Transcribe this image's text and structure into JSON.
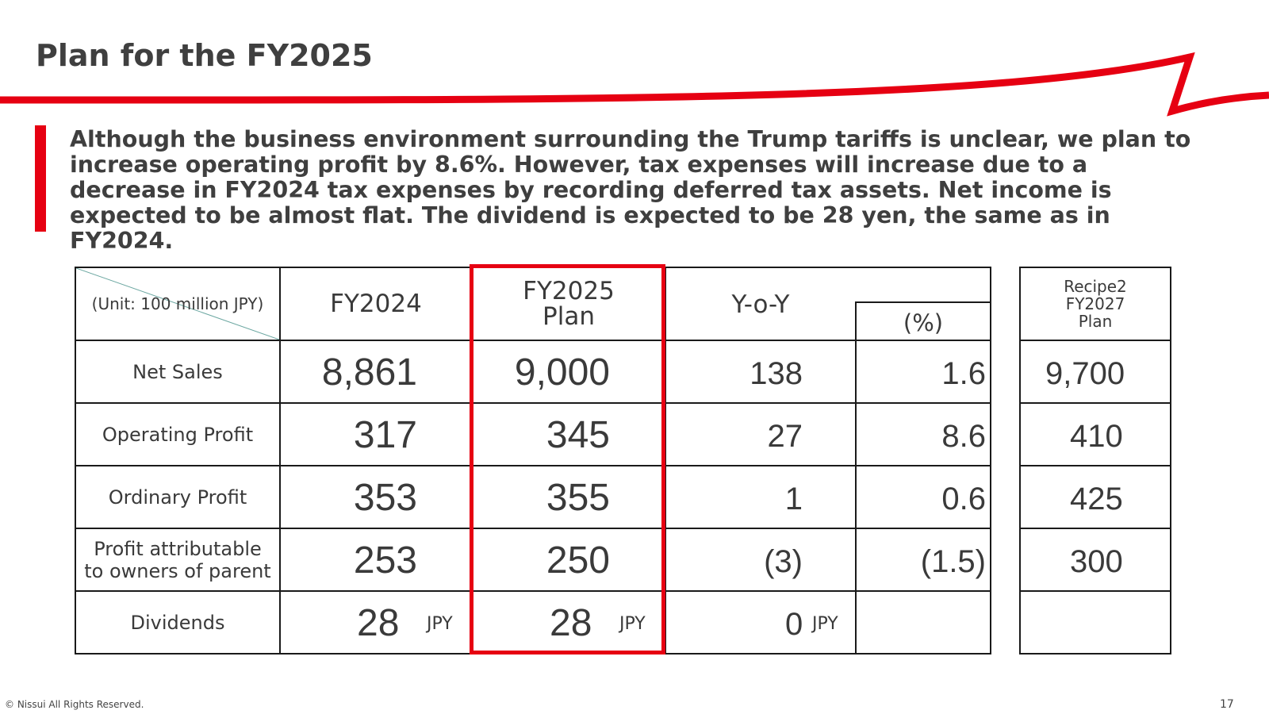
{
  "title": "Plan for the FY2025",
  "lead_text": "Although the business environment surrounding the Trump tariffs is unclear, we plan to increase operating profit by 8.6%. However, tax expenses will increase due to a decrease in FY2024 tax expenses by recording deferred tax assets. Net income is expected to be almost flat. The dividend is expected to be 28 yen, the same as in FY2024.",
  "table": {
    "unit_label": "(Unit: 100 million JPY)",
    "headers": {
      "fy2024": "FY2024",
      "fy2025_line1": "FY2025",
      "fy2025_line2": "Plan",
      "yoy": "Y-o-Y",
      "pct": "(%)",
      "recipe_line1": "Recipe2",
      "recipe_line2": "FY2027",
      "recipe_line3": "Plan"
    },
    "rows": [
      {
        "label": "Net Sales",
        "fy2024": "8,861",
        "fy2025": "9,000",
        "yoy": "138",
        "pct": "1.6",
        "recipe": "9,700"
      },
      {
        "label": "Operating Profit",
        "fy2024": "317",
        "fy2025": "345",
        "yoy": "27",
        "pct": "8.6",
        "recipe": "410"
      },
      {
        "label": "Ordinary Profit",
        "fy2024": "353",
        "fy2025": "355",
        "yoy": "1",
        "pct": "0.6",
        "recipe": "425"
      },
      {
        "label_line1": "Profit attributable",
        "label_line2": "to owners of parent",
        "fy2024": "253",
        "fy2025": "250",
        "yoy": "(3)",
        "pct": "(1.5)",
        "recipe": "300"
      },
      {
        "label": "Dividends",
        "fy2024": "28",
        "fy2025": "28",
        "yoy": "0",
        "unit": "JPY"
      }
    ]
  },
  "footer": "© Nissui All Rights Reserved.",
  "page_number": "17",
  "colors": {
    "accent_red": "#e60012",
    "text": "#3f3f3f"
  }
}
